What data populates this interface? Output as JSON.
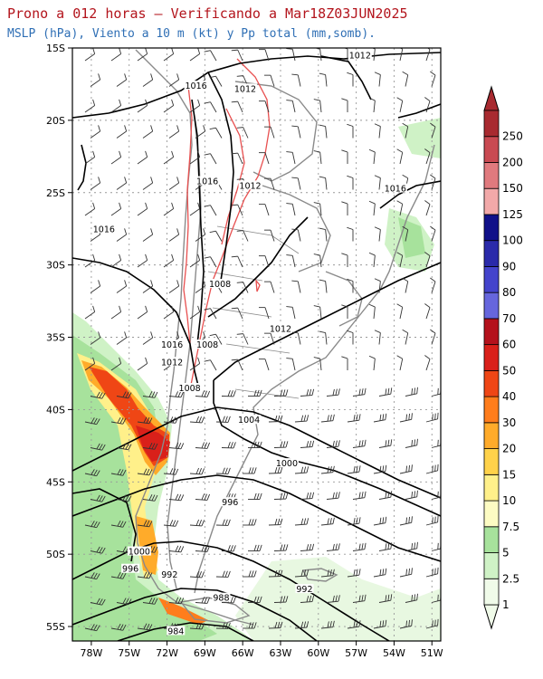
{
  "header": {
    "title": "Prono a 012 horas — Verificando a Mar18Z03JUN2025",
    "subtitle": "MSLP (hPa), Viento a 10 m (kt) y Pp total (mm,somb)."
  },
  "map": {
    "lat_labels": [
      "15S",
      "20S",
      "25S",
      "30S",
      "35S",
      "40S",
      "45S",
      "50S",
      "55S"
    ],
    "lon_labels": [
      "78W",
      "75W",
      "72W",
      "69W",
      "66W",
      "63W",
      "60W",
      "57W",
      "54W",
      "51W"
    ],
    "isobar_labels": [
      {
        "text": "1012",
        "lon": -56.7,
        "lat": -15.6
      },
      {
        "text": "1016",
        "lon": -69.7,
        "lat": -17.7
      },
      {
        "text": "1012",
        "lon": -65.8,
        "lat": -17.9
      },
      {
        "text": "1016",
        "lon": -68.8,
        "lat": -24.3
      },
      {
        "text": "1012",
        "lon": -65.4,
        "lat": -24.6
      },
      {
        "text": "1016",
        "lon": -53.9,
        "lat": -24.8
      },
      {
        "text": "1016",
        "lon": -77.0,
        "lat": -27.6
      },
      {
        "text": "1008",
        "lon": -67.8,
        "lat": -31.4
      },
      {
        "text": "1012",
        "lon": -63.0,
        "lat": -34.5
      },
      {
        "text": "1016",
        "lon": -71.6,
        "lat": -35.6
      },
      {
        "text": "1008",
        "lon": -68.8,
        "lat": -35.6
      },
      {
        "text": "1012",
        "lon": -71.6,
        "lat": -36.8
      },
      {
        "text": "1008",
        "lon": -70.2,
        "lat": -38.6
      },
      {
        "text": "1004",
        "lon": -65.5,
        "lat": -40.8
      },
      {
        "text": "1000",
        "lon": -62.5,
        "lat": -43.8
      },
      {
        "text": "996",
        "lon": -67.0,
        "lat": -46.5
      },
      {
        "text": "1000",
        "lon": -74.2,
        "lat": -49.9
      },
      {
        "text": "996",
        "lon": -74.9,
        "lat": -51.1
      },
      {
        "text": "992",
        "lon": -71.8,
        "lat": -51.5
      },
      {
        "text": "992",
        "lon": -61.1,
        "lat": -52.5
      },
      {
        "text": "988",
        "lon": -67.7,
        "lat": -53.1
      },
      {
        "text": "984",
        "lon": -71.3,
        "lat": -55.4
      }
    ]
  },
  "colorbar": {
    "levels": [
      "1",
      "2.5",
      "5",
      "7.5",
      "10",
      "15",
      "20",
      "30",
      "40",
      "50",
      "60",
      "70",
      "80",
      "90",
      "100",
      "125",
      "150",
      "200",
      "250"
    ],
    "colors": [
      "#f0fbe9",
      "#cff2c6",
      "#a7e29c",
      "#fdfcc3",
      "#fff08a",
      "#ffd24a",
      "#ffab2a",
      "#ff7d1c",
      "#ef4615",
      "#d9201a",
      "#b4111c",
      "#6666dd",
      "#4444cc",
      "#2a2aaa",
      "#101089",
      "#f2a9a9",
      "#e07a7e",
      "#c94a52",
      "#a82a30"
    ]
  },
  "colors": {
    "title": "#b3141c",
    "subtitle": "#2f6fb5",
    "isobar": "#000000",
    "terrain_contour": "#e85050",
    "borders": "#8a8a8a"
  }
}
